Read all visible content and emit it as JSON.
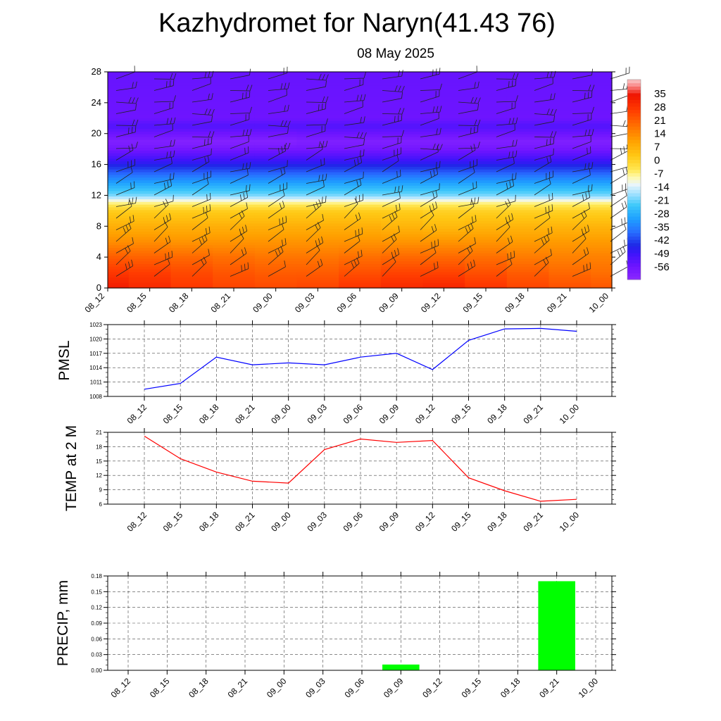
{
  "header": {
    "title": "Kazhydromet for Naryn(41.43 76)",
    "date": "08 May 2025"
  },
  "time_labels": [
    "08_12",
    "08_15",
    "08_18",
    "08_21",
    "09_00",
    "09_03",
    "09_06",
    "09_09",
    "09_12",
    "09_15",
    "09_18",
    "09_21",
    "10_00"
  ],
  "chart_data": [
    {
      "type": "heatmap",
      "description_type": "time-height temperature cross-section with wind barbs",
      "x": [
        "08_12",
        "08_15",
        "08_18",
        "08_21",
        "09_00",
        "09_03",
        "09_06",
        "09_09",
        "09_12",
        "09_15",
        "09_18",
        "09_21",
        "10_00"
      ],
      "ylim": [
        0,
        28
      ],
      "yticks": [
        0,
        4,
        8,
        12,
        16,
        20,
        24,
        28
      ],
      "colorbar": {
        "labels": [
          "35",
          "28",
          "21",
          "14",
          "7",
          "0",
          "-7",
          "-14",
          "-21",
          "-28",
          "-35",
          "-42",
          "-49",
          "-56"
        ],
        "range": [
          -63,
          42
        ]
      },
      "temperature_profile_by_level": [
        {
          "level": 0,
          "values": [
            33,
            30,
            27,
            25,
            24,
            25,
            28,
            30,
            31,
            28,
            25,
            23,
            22
          ]
        },
        {
          "level": 2,
          "values": [
            27,
            26,
            24,
            22,
            21,
            21,
            23,
            25,
            25,
            23,
            21,
            19,
            18
          ]
        },
        {
          "level": 4,
          "values": [
            21,
            20,
            19,
            18,
            17,
            17,
            18,
            19,
            19,
            18,
            16,
            15,
            15
          ]
        },
        {
          "level": 6,
          "values": [
            13,
            13,
            12,
            12,
            12,
            12,
            12,
            12,
            12,
            12,
            11,
            11,
            11
          ]
        },
        {
          "level": 8,
          "values": [
            7,
            7,
            7,
            7,
            7,
            7,
            7,
            6,
            5,
            6,
            6,
            6,
            6
          ]
        },
        {
          "level": 10,
          "values": [
            1,
            1,
            1,
            1,
            1,
            1,
            1,
            1,
            0,
            0,
            0,
            0,
            0
          ]
        },
        {
          "level": 11,
          "values": [
            -7,
            -7,
            -7,
            -7,
            -7,
            -7,
            -7,
            -7,
            -7,
            -7,
            -7,
            -7,
            -7
          ]
        },
        {
          "level": 12,
          "values": [
            -20,
            -20,
            -20,
            -20,
            -20,
            -20,
            -20,
            -20,
            -20,
            -20,
            -20,
            -20,
            -20
          ]
        },
        {
          "level": 14,
          "values": [
            -33,
            -33,
            -33,
            -33,
            -33,
            -33,
            -33,
            -33,
            -33,
            -33,
            -33,
            -33,
            -33
          ]
        },
        {
          "level": 16,
          "values": [
            -46,
            -46,
            -46,
            -46,
            -46,
            -46,
            -46,
            -46,
            -46,
            -46,
            -46,
            -46,
            -46
          ]
        },
        {
          "level": 18,
          "values": [
            -57,
            -57,
            -57,
            -57,
            -57,
            -57,
            -57,
            -57,
            -57,
            -57,
            -57,
            -57,
            -57
          ]
        },
        {
          "level": 19,
          "values": [
            -60,
            -60,
            -61,
            -61,
            -61,
            -60,
            -60,
            -60,
            -60,
            -60,
            -60,
            -60,
            -60
          ]
        },
        {
          "level": 21,
          "values": [
            -52,
            -52,
            -52,
            -52,
            -52,
            -52,
            -52,
            -52,
            -52,
            -52,
            -52,
            -52,
            -52
          ]
        },
        {
          "level": 22,
          "values": [
            -56,
            -56,
            -56,
            -56,
            -56,
            -56,
            -56,
            -56,
            -56,
            -56,
            -56,
            -56,
            -56
          ]
        },
        {
          "level": 28,
          "values": [
            -55,
            -55,
            -55,
            -55,
            -55,
            -55,
            -55,
            -55,
            -55,
            -55,
            -55,
            -55,
            -55
          ]
        }
      ]
    },
    {
      "type": "line",
      "ylabel": "PMSL",
      "ylim": [
        1008,
        1023
      ],
      "yticks": [
        "1008",
        "1011",
        "1014",
        "1017",
        "1020",
        "1023"
      ],
      "color": "#0000ff",
      "grid": true,
      "x": [
        "08_12",
        "08_15",
        "08_18",
        "08_21",
        "09_00",
        "09_03",
        "09_06",
        "09_09",
        "09_12",
        "09_15",
        "09_18",
        "09_21",
        "10_00"
      ],
      "values": [
        1009.5,
        1010.7,
        1016.2,
        1014.6,
        1015.0,
        1014.6,
        1016.2,
        1017.0,
        1013.6,
        1019.7,
        1022.1,
        1022.2,
        1021.6
      ]
    },
    {
      "type": "line",
      "ylabel": "TEMP at 2 M",
      "ylim": [
        6,
        21
      ],
      "yticks": [
        "6",
        "9",
        "12",
        "15",
        "18",
        "21"
      ],
      "color": "#ff0000",
      "grid": true,
      "x": [
        "08_12",
        "08_15",
        "08_18",
        "08_21",
        "09_00",
        "09_03",
        "09_06",
        "09_09",
        "09_12",
        "09_15",
        "09_18",
        "09_21",
        "10_00"
      ],
      "values": [
        20.2,
        15.5,
        12.7,
        10.8,
        10.4,
        17.4,
        19.6,
        18.9,
        19.3,
        11.5,
        8.8,
        6.6,
        7.0
      ]
    },
    {
      "type": "bar",
      "ylabel": "PRECIP, mm",
      "ylim": [
        0,
        0.18
      ],
      "yticks": [
        "0.00",
        "0.03",
        "0.06",
        "0.09",
        "0.12",
        "0.15",
        "0.18"
      ],
      "color": "#00ff00",
      "grid": true,
      "categories": [
        "08_12",
        "08_15",
        "08_18",
        "08_21",
        "09_00",
        "09_03",
        "09_06",
        "09_09",
        "09_12",
        "09_15",
        "09_18",
        "09_21",
        "10_00"
      ],
      "values": [
        0,
        0,
        0,
        0,
        0,
        0,
        0,
        0.011,
        0,
        0,
        0,
        0.17,
        0
      ]
    }
  ]
}
